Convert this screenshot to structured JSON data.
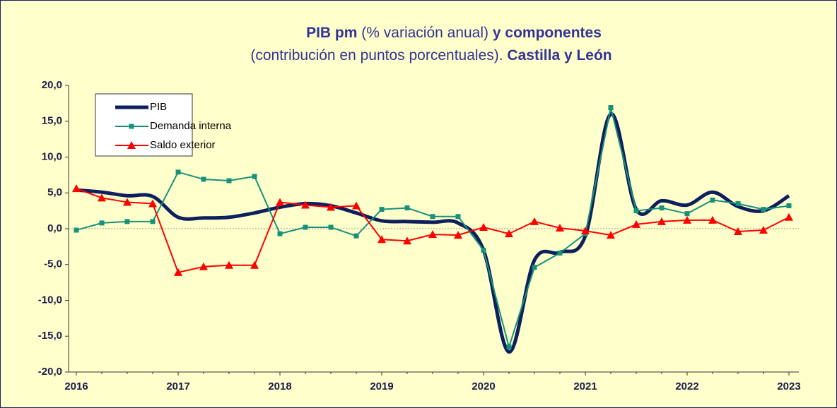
{
  "chart_data": {
    "type": "line",
    "title": {
      "part1": "PIB pm",
      "part2": "(% variación  anual)",
      "part3": "y componentes"
    },
    "subtitle": {
      "part1": "(contribución  en  puntos  porcentuales).",
      "part2": "Castilla  y  León"
    },
    "categories": [
      "2016",
      null,
      null,
      null,
      "2017",
      null,
      null,
      null,
      "2018",
      null,
      null,
      null,
      "2019",
      null,
      null,
      null,
      "2020",
      null,
      null,
      null,
      "2021",
      null,
      null,
      null,
      "2022",
      null,
      null,
      null,
      "2023"
    ],
    "series": [
      {
        "name": "PIB",
        "color": "#0d1f5c",
        "smooth": true,
        "marker": null,
        "values": [
          5.4,
          5.1,
          4.6,
          4.5,
          1.6,
          1.5,
          1.6,
          2.2,
          3.0,
          3.5,
          3.2,
          2.2,
          1.1,
          1.0,
          0.9,
          0.8,
          -3.0,
          -17.2,
          -4.4,
          -3.3,
          -1.0,
          16.0,
          2.7,
          3.9,
          3.3,
          5.1,
          3.1,
          2.5,
          4.6
        ]
      },
      {
        "name": "Demanda interna",
        "color": "#17917a",
        "smooth": false,
        "marker": "square",
        "values": [
          -0.2,
          0.8,
          1.0,
          1.0,
          7.9,
          6.9,
          6.7,
          7.3,
          -0.7,
          0.2,
          0.2,
          -1.0,
          2.7,
          2.9,
          1.7,
          1.7,
          -3.0,
          -16.5,
          -5.4,
          -3.4,
          -0.7,
          16.9,
          2.5,
          2.9,
          2.1,
          4.0,
          3.5,
          2.7,
          3.2
        ]
      },
      {
        "name": "Saldo exterior",
        "color": "#ff0000",
        "smooth": false,
        "marker": "triangle",
        "values": [
          5.6,
          4.3,
          3.7,
          3.5,
          -6.1,
          -5.3,
          -5.1,
          -5.1,
          3.7,
          3.3,
          3.0,
          3.2,
          -1.5,
          -1.7,
          -0.8,
          -0.9,
          0.2,
          -0.7,
          1.0,
          0.1,
          -0.3,
          -0.9,
          0.6,
          1.0,
          1.2,
          1.2,
          -0.4,
          -0.2,
          1.6
        ]
      }
    ],
    "ylim": [
      -20,
      20
    ],
    "yticks": [
      {
        "value": -20,
        "label": "-20,0"
      },
      {
        "value": -15,
        "label": "-15,0"
      },
      {
        "value": -10,
        "label": "-10,0"
      },
      {
        "value": -5,
        "label": "-5,0"
      },
      {
        "value": 0,
        "label": "0,0"
      },
      {
        "value": 5,
        "label": "5,0"
      },
      {
        "value": 10,
        "label": "10,0"
      },
      {
        "value": 15,
        "label": "15,0"
      },
      {
        "value": 20,
        "label": "20,0"
      }
    ],
    "grid": false,
    "zero_line": true,
    "legend": "upper left"
  }
}
